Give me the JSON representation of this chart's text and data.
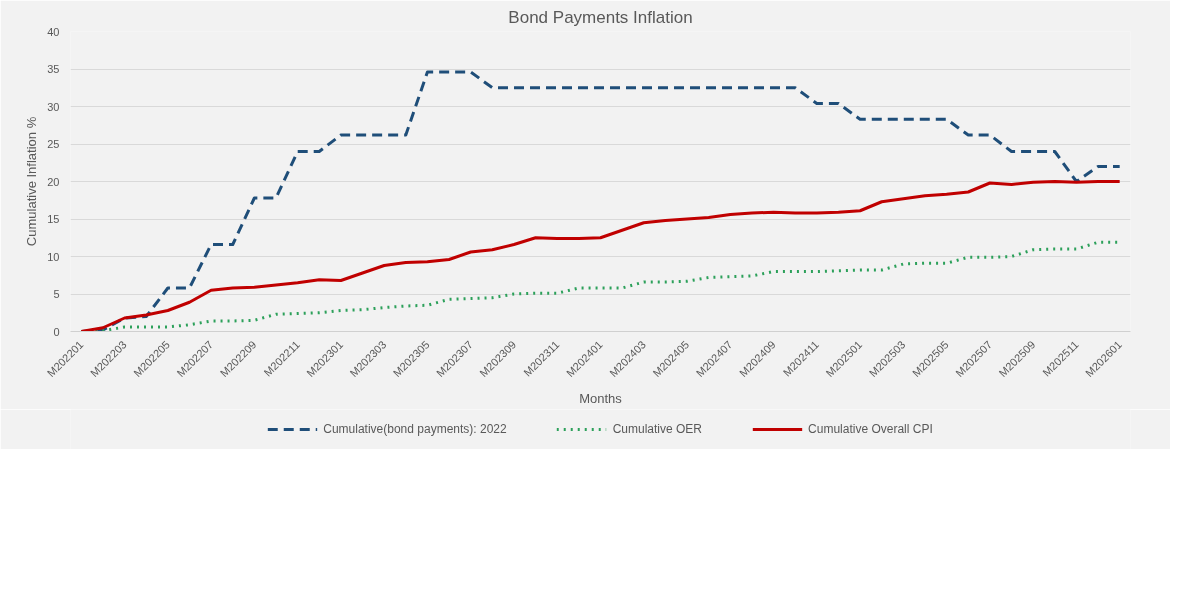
{
  "chart_data": {
    "type": "line",
    "title": "Bond Payments Inflation",
    "xlabel": "Months",
    "ylabel": "Cumulative Inflation %",
    "categories": [
      "M202201",
      null,
      "M202203",
      null,
      "M202205",
      null,
      "M202207",
      null,
      "M202209",
      null,
      "M202211",
      null,
      "M202301",
      null,
      "M202303",
      null,
      "M202305",
      null,
      "M202307",
      null,
      "M202309",
      null,
      "M202311",
      null,
      "M202401",
      null,
      "M202403",
      null,
      "M202405",
      null,
      "M202407",
      null,
      "M202409",
      null,
      "M202411",
      null,
      "M202501",
      null,
      "M202503",
      null,
      "M202505",
      null,
      "M202507",
      null,
      "M202509",
      null,
      "M202511",
      null,
      "M202601"
    ],
    "ylim": [
      0,
      40
    ],
    "yticks": [
      0,
      5,
      10,
      15,
      20,
      25,
      30,
      35,
      40
    ],
    "grid": "y",
    "legend": "bottom",
    "marker": "none",
    "series": [
      {
        "name": "Cumulative(bond payments): 2022",
        "color": "#1f4e79",
        "line_style": "dashed",
        "values": [
          0,
          0.2,
          1.8,
          2,
          5.8,
          5.8,
          11.6,
          11.6,
          17.8,
          17.8,
          24,
          24,
          26.2,
          26.2,
          26.2,
          26.2,
          34.6,
          34.6,
          34.6,
          32.5,
          32.5,
          32.5,
          32.5,
          32.5,
          32.5,
          32.5,
          32.5,
          32.5,
          32.5,
          32.5,
          32.5,
          32.5,
          32.5,
          32.5,
          30.4,
          30.4,
          28.3,
          28.3,
          28.3,
          28.3,
          28.3,
          26.2,
          26.2,
          24,
          24,
          24,
          20,
          22,
          22
        ]
      },
      {
        "name": "Cumulative OER",
        "color": "#2ca05a",
        "line_style": "dotted",
        "values": [
          0,
          0.1,
          0.6,
          0.6,
          0.6,
          0.9,
          1.4,
          1.4,
          1.5,
          2.3,
          2.4,
          2.5,
          2.8,
          2.9,
          3.2,
          3.4,
          3.5,
          4.3,
          4.4,
          4.5,
          5.0,
          5.1,
          5.1,
          5.8,
          5.8,
          5.8,
          6.6,
          6.6,
          6.7,
          7.2,
          7.3,
          7.4,
          8.0,
          8.0,
          8.0,
          8.1,
          8.2,
          8.2,
          9.0,
          9.1,
          9.1,
          9.9,
          9.9,
          10.0,
          10.9,
          11.0,
          11.0,
          11.9,
          11.9
        ]
      },
      {
        "name": "Cumulative Overall CPI",
        "color": "#c00000",
        "line_style": "solid",
        "values": [
          0,
          0.5,
          1.8,
          2.2,
          2.8,
          3.9,
          5.5,
          5.8,
          5.9,
          6.2,
          6.5,
          6.9,
          6.8,
          7.8,
          8.8,
          9.2,
          9.3,
          9.6,
          10.6,
          10.9,
          11.6,
          12.5,
          12.4,
          12.4,
          12.5,
          13.5,
          14.5,
          14.8,
          15.0,
          15.2,
          15.6,
          15.8,
          15.9,
          15.8,
          15.8,
          15.9,
          16.1,
          17.3,
          17.7,
          18.1,
          18.3,
          18.6,
          19.8,
          19.6,
          19.9,
          20.0,
          19.9,
          20.0,
          20.0
        ]
      }
    ]
  }
}
